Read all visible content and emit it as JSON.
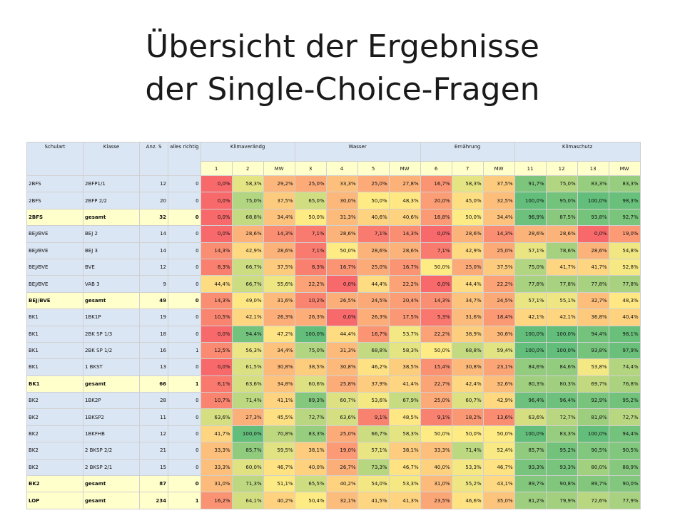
{
  "title": {
    "line1": "Übersicht der Ergebnisse",
    "line2": "der Single-Choice-Fragen"
  },
  "table": {
    "headers": {
      "schulart": "Schulart",
      "klasse": "Klasse",
      "anz": "Anz. S",
      "alles": "alles richtig",
      "groups": [
        "Klimaverändg",
        "Wasser",
        "Ernährung",
        "Klimaschutz"
      ],
      "subcols": [
        "1",
        "2",
        "MW",
        "3",
        "4",
        "5",
        "MW",
        "6",
        "7",
        "MW",
        "11",
        "12",
        "13",
        "MW"
      ]
    },
    "rows": [
      {
        "schulart": "2BFS",
        "klasse": "2BFP1/1",
        "anz": "12",
        "alles": "0",
        "total": false,
        "values": [
          "0,0%",
          "58,3%",
          "29,2%",
          "25,0%",
          "33,3%",
          "25,0%",
          "27,8%",
          "16,7%",
          "58,3%",
          "37,5%",
          "91,7%",
          "75,0%",
          "83,3%",
          "83,3%"
        ]
      },
      {
        "schulart": "2BFS",
        "klasse": "2BFP 2/2",
        "anz": "20",
        "alles": "0",
        "total": false,
        "values": [
          "0,0%",
          "75,0%",
          "37,5%",
          "65,0%",
          "30,0%",
          "50,0%",
          "48,3%",
          "20,0%",
          "45,0%",
          "32,5%",
          "100,0%",
          "95,0%",
          "100,0%",
          "98,3%"
        ]
      },
      {
        "schulart": "2BFS",
        "klasse": "gesamt",
        "anz": "32",
        "alles": "0",
        "total": true,
        "values": [
          "0,0%",
          "68,8%",
          "34,4%",
          "50,0%",
          "31,3%",
          "40,6%",
          "40,6%",
          "18,8%",
          "50,0%",
          "34,4%",
          "96,9%",
          "87,5%",
          "93,8%",
          "92,7%"
        ]
      },
      {
        "schulart": "BEJ/BVE",
        "klasse": "BEJ 2",
        "anz": "14",
        "alles": "0",
        "total": false,
        "values": [
          "0,0%",
          "28,6%",
          "14,3%",
          "7,1%",
          "28,6%",
          "7,1%",
          "14,3%",
          "0,0%",
          "28,6%",
          "14,3%",
          "28,6%",
          "28,6%",
          "0,0%",
          "19,0%"
        ]
      },
      {
        "schulart": "BEJ/BVE",
        "klasse": "BEJ 3",
        "anz": "14",
        "alles": "0",
        "total": false,
        "values": [
          "14,3%",
          "42,9%",
          "28,6%",
          "7,1%",
          "50,0%",
          "28,6%",
          "28,6%",
          "7,1%",
          "42,9%",
          "25,0%",
          "57,1%",
          "78,6%",
          "28,6%",
          "54,8%"
        ]
      },
      {
        "schulart": "BEJ/BVE",
        "klasse": "BVE",
        "anz": "12",
        "alles": "0",
        "total": false,
        "values": [
          "8,3%",
          "66,7%",
          "37,5%",
          "8,3%",
          "16,7%",
          "25,0%",
          "16,7%",
          "50,0%",
          "25,0%",
          "37,5%",
          "75,0%",
          "41,7%",
          "41,7%",
          "52,8%"
        ]
      },
      {
        "schulart": "BEJ/BVE",
        "klasse": "VAB 3",
        "anz": "9",
        "alles": "0",
        "total": false,
        "values": [
          "44,4%",
          "66,7%",
          "55,6%",
          "22,2%",
          "0,0%",
          "44,4%",
          "22,2%",
          "0,0%",
          "44,4%",
          "22,2%",
          "77,8%",
          "77,8%",
          "77,8%",
          "77,8%"
        ]
      },
      {
        "schulart": "BEJ/BVE",
        "klasse": "gesamt",
        "anz": "49",
        "alles": "0",
        "total": true,
        "values": [
          "14,3%",
          "49,0%",
          "31,6%",
          "10,2%",
          "26,5%",
          "24,5%",
          "20,4%",
          "14,3%",
          "34,7%",
          "24,5%",
          "57,1%",
          "55,1%",
          "32,7%",
          "48,3%"
        ]
      },
      {
        "schulart": "BK1",
        "klasse": "1BK1P",
        "anz": "19",
        "alles": "0",
        "total": false,
        "values": [
          "10,5%",
          "42,1%",
          "26,3%",
          "26,3%",
          "0,0%",
          "26,3%",
          "17,5%",
          "5,3%",
          "31,6%",
          "18,4%",
          "42,1%",
          "42,1%",
          "36,8%",
          "40,4%"
        ]
      },
      {
        "schulart": "BK1",
        "klasse": "2BK SP 1/3",
        "anz": "18",
        "alles": "0",
        "total": false,
        "values": [
          "0,0%",
          "94,4%",
          "47,2%",
          "100,0%",
          "44,4%",
          "16,7%",
          "53,7%",
          "22,2%",
          "38,9%",
          "30,6%",
          "100,0%",
          "100,0%",
          "94,4%",
          "98,1%"
        ]
      },
      {
        "schulart": "BK1",
        "klasse": "2BK SP 1/2",
        "anz": "16",
        "alles": "1",
        "total": false,
        "values": [
          "12,5%",
          "56,3%",
          "34,4%",
          "75,0%",
          "31,3%",
          "68,8%",
          "58,3%",
          "50,0%",
          "68,8%",
          "59,4%",
          "100,0%",
          "100,0%",
          "93,8%",
          "97,9%"
        ]
      },
      {
        "schulart": "BK1",
        "klasse": "1 BKST",
        "anz": "13",
        "alles": "0",
        "total": false,
        "values": [
          "0,0%",
          "61,5%",
          "30,8%",
          "38,5%",
          "30,8%",
          "46,2%",
          "38,5%",
          "15,4%",
          "30,8%",
          "23,1%",
          "84,6%",
          "84,6%",
          "53,8%",
          "74,4%"
        ]
      },
      {
        "schulart": "BK1",
        "klasse": "gesamt",
        "anz": "66",
        "alles": "1",
        "total": true,
        "values": [
          "6,1%",
          "63,6%",
          "34,8%",
          "60,6%",
          "25,8%",
          "37,9%",
          "41,4%",
          "22,7%",
          "42,4%",
          "32,6%",
          "80,3%",
          "80,3%",
          "69,7%",
          "76,8%"
        ]
      },
      {
        "schulart": "BK2",
        "klasse": "1BK2P",
        "anz": "28",
        "alles": "0",
        "total": false,
        "values": [
          "10,7%",
          "71,4%",
          "41,1%",
          "89,3%",
          "60,7%",
          "53,6%",
          "67,9%",
          "25,0%",
          "60,7%",
          "42,9%",
          "96,4%",
          "96,4%",
          "92,9%",
          "95,2%"
        ]
      },
      {
        "schulart": "BK2",
        "klasse": "1BKSP2",
        "anz": "11",
        "alles": "0",
        "total": false,
        "values": [
          "63,6%",
          "27,3%",
          "45,5%",
          "72,7%",
          "63,6%",
          "9,1%",
          "48,5%",
          "9,1%",
          "18,2%",
          "13,6%",
          "63,6%",
          "72,7%",
          "81,8%",
          "72,7%"
        ]
      },
      {
        "schulart": "BK2",
        "klasse": "1BKFHB",
        "anz": "12",
        "alles": "0",
        "total": false,
        "values": [
          "41,7%",
          "100,0%",
          "70,8%",
          "83,3%",
          "25,0%",
          "66,7%",
          "58,3%",
          "50,0%",
          "50,0%",
          "50,0%",
          "100,0%",
          "83,3%",
          "100,0%",
          "94,4%"
        ]
      },
      {
        "schulart": "BK2",
        "klasse": "2 BKSP 2/2",
        "anz": "21",
        "alles": "0",
        "total": false,
        "values": [
          "33,3%",
          "85,7%",
          "59,5%",
          "38,1%",
          "19,0%",
          "57,1%",
          "38,1%",
          "33,3%",
          "71,4%",
          "52,4%",
          "85,7%",
          "95,2%",
          "90,5%",
          "90,5%"
        ]
      },
      {
        "schulart": "BK2",
        "klasse": "2 BKSP 2/1",
        "anz": "15",
        "alles": "0",
        "total": false,
        "values": [
          "33,3%",
          "60,0%",
          "46,7%",
          "40,0%",
          "26,7%",
          "73,3%",
          "46,7%",
          "40,0%",
          "53,3%",
          "46,7%",
          "93,3%",
          "93,3%",
          "80,0%",
          "88,9%"
        ]
      },
      {
        "schulart": "BK2",
        "klasse": "gesamt",
        "anz": "87",
        "alles": "0",
        "total": true,
        "values": [
          "31,0%",
          "71,3%",
          "51,1%",
          "65,5%",
          "40,2%",
          "54,0%",
          "53,3%",
          "31,0%",
          "55,2%",
          "43,1%",
          "89,7%",
          "90,8%",
          "89,7%",
          "90,0%"
        ]
      },
      {
        "schulart": "LOP",
        "klasse": "gesamt",
        "anz": "234",
        "alles": "1",
        "total": true,
        "values": [
          "16,2%",
          "64,1%",
          "40,2%",
          "50,4%",
          "32,1%",
          "41,5%",
          "41,3%",
          "23,5%",
          "46,6%",
          "35,0%",
          "81,2%",
          "79,9%",
          "72,6%",
          "77,9%"
        ]
      }
    ]
  }
}
